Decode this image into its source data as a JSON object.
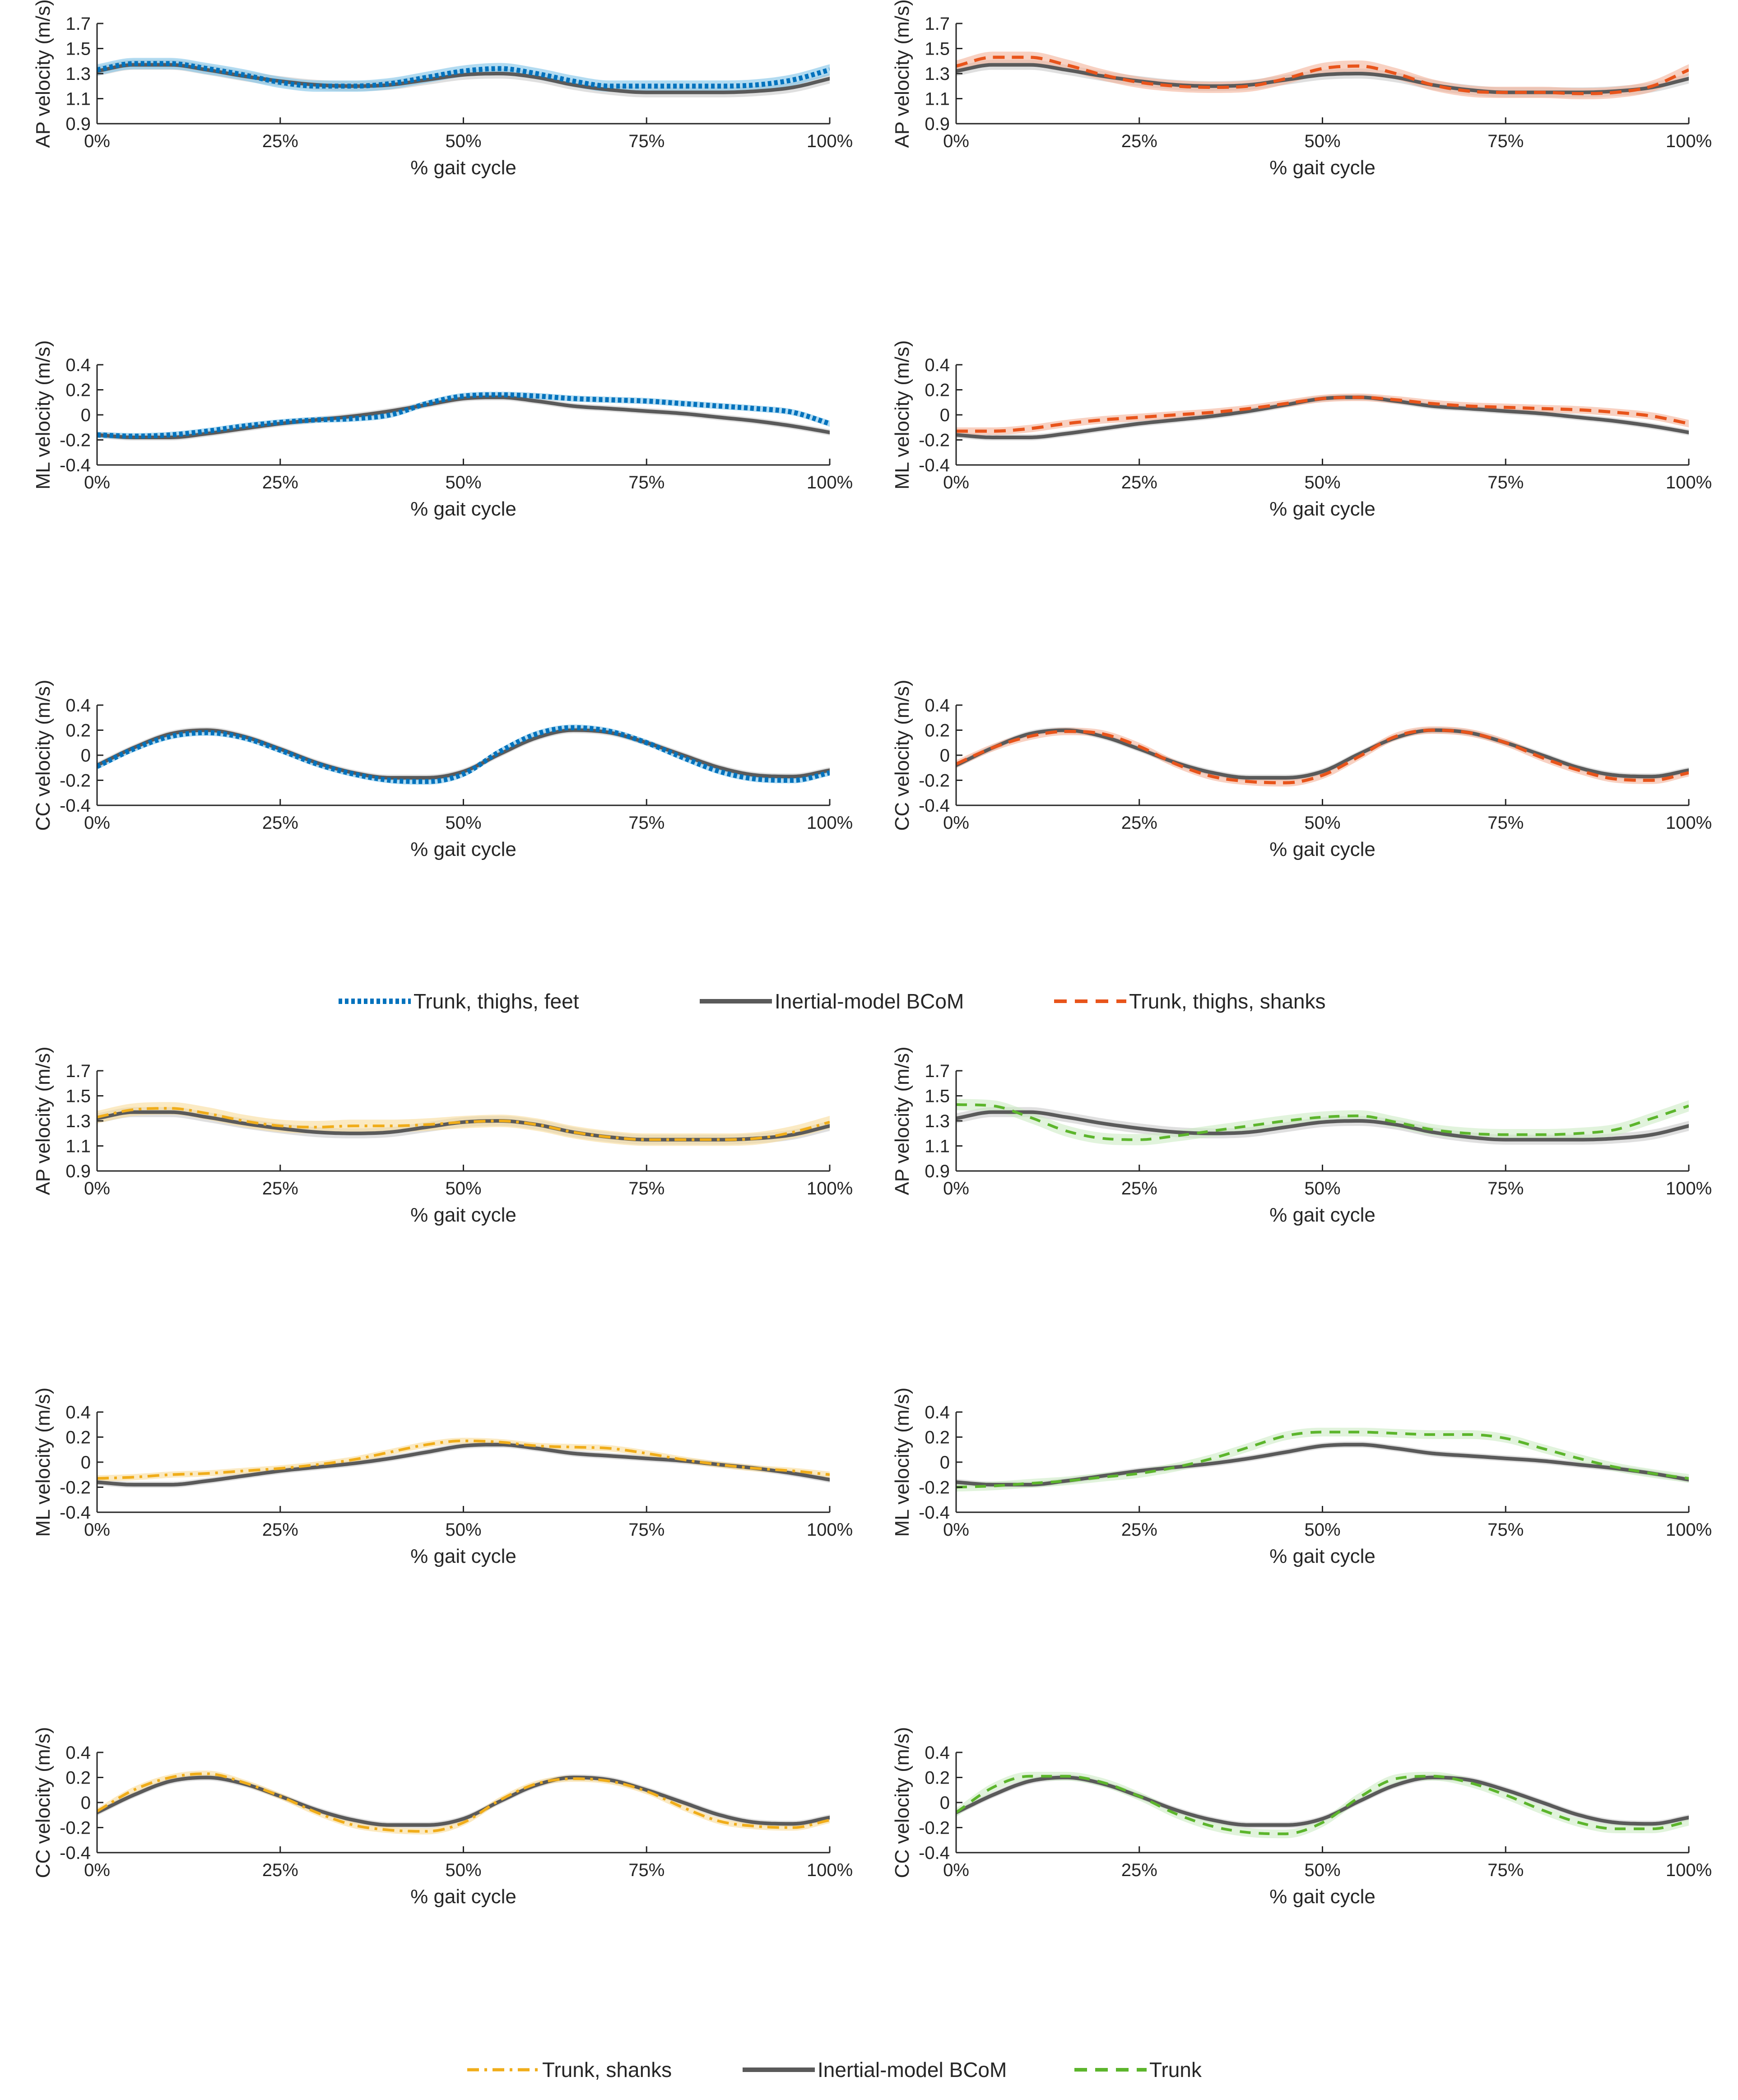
{
  "chart_data": {
    "type": "line",
    "xlabel": "% gait cycle",
    "x_ticks": [
      "0%",
      "25%",
      "50%",
      "75%",
      "100%"
    ],
    "xlim": [
      0,
      100
    ],
    "colors": {
      "reference": "#5a5a5a",
      "reference_band": "#d4d4d4",
      "trunk_thighs_feet": "#0072bd",
      "trunk_thighs_feet_band": "#7ec3e8",
      "trunk_thighs_shanks": "#e8541b",
      "trunk_thighs_shanks_band": "#f3b39a",
      "trunk_shanks": "#f0ad1a",
      "trunk_shanks_band": "#f9dc9b",
      "trunk": "#5cb52c",
      "trunk_band": "#cdebc5"
    },
    "legends": [
      {
        "entries": [
          {
            "key": "trunk_thighs_feet",
            "label": "Trunk, thighs, feet",
            "style": "dotted"
          },
          {
            "key": "reference",
            "label": "Inertial-model BCoM",
            "style": "solid"
          },
          {
            "key": "trunk_thighs_shanks",
            "label": "Trunk, thighs, shanks",
            "style": "dashed"
          }
        ]
      },
      {
        "entries": [
          {
            "key": "trunk_shanks",
            "label": "Trunk, shanks",
            "style": "dashdot"
          },
          {
            "key": "reference",
            "label": "Inertial-model BCoM",
            "style": "solid"
          },
          {
            "key": "trunk",
            "label": "Trunk",
            "style": "dashed"
          }
        ]
      }
    ],
    "x_samples": [
      0,
      5,
      10,
      15,
      20,
      25,
      30,
      35,
      40,
      45,
      50,
      55,
      60,
      65,
      70,
      75,
      80,
      85,
      90,
      95,
      100
    ],
    "reference": {
      "AP": [
        1.32,
        1.37,
        1.37,
        1.33,
        1.28,
        1.24,
        1.21,
        1.2,
        1.21,
        1.25,
        1.29,
        1.3,
        1.27,
        1.21,
        1.17,
        1.15,
        1.15,
        1.15,
        1.16,
        1.19,
        1.26
      ],
      "ML": [
        -0.16,
        -0.18,
        -0.18,
        -0.15,
        -0.11,
        -0.07,
        -0.04,
        -0.01,
        0.03,
        0.08,
        0.13,
        0.14,
        0.11,
        0.07,
        0.05,
        0.03,
        0.01,
        -0.02,
        -0.05,
        -0.09,
        -0.14
      ],
      "CC": [
        -0.08,
        0.06,
        0.17,
        0.2,
        0.15,
        0.05,
        -0.06,
        -0.14,
        -0.18,
        -0.18,
        -0.13,
        0.01,
        0.14,
        0.2,
        0.18,
        0.1,
        0.0,
        -0.1,
        -0.16,
        -0.17,
        -0.12
      ]
    },
    "panels": [
      {
        "series": "trunk_thighs_feet",
        "measure": "AP",
        "ylabel": "AP velocity (m/s)",
        "ylim": [
          0.9,
          1.7
        ],
        "yticks": [
          "0.9",
          "1.1",
          "1.3",
          "1.5",
          "1.7"
        ],
        "band": 0.045,
        "values": [
          1.33,
          1.38,
          1.38,
          1.34,
          1.29,
          1.23,
          1.2,
          1.2,
          1.22,
          1.27,
          1.32,
          1.34,
          1.3,
          1.24,
          1.2,
          1.2,
          1.2,
          1.2,
          1.21,
          1.25,
          1.33
        ]
      },
      {
        "series": "trunk_thighs_shanks",
        "measure": "AP",
        "ylabel": "AP velocity (m/s)",
        "ylim": [
          0.9,
          1.7
        ],
        "yticks": [
          "0.9",
          "1.1",
          "1.3",
          "1.5",
          "1.7"
        ],
        "band": 0.045,
        "values": [
          1.36,
          1.43,
          1.43,
          1.37,
          1.29,
          1.23,
          1.2,
          1.19,
          1.2,
          1.26,
          1.34,
          1.36,
          1.3,
          1.21,
          1.16,
          1.15,
          1.15,
          1.14,
          1.15,
          1.2,
          1.33
        ]
      },
      {
        "series": "trunk_thighs_feet",
        "measure": "ML",
        "ylabel": "ML velocity (m/s)",
        "ylim": [
          -0.4,
          0.4
        ],
        "yticks": [
          "-0.4",
          "-0.2",
          "0",
          "0.2",
          "0.4"
        ],
        "band": 0.025,
        "values": [
          -0.16,
          -0.17,
          -0.16,
          -0.13,
          -0.09,
          -0.06,
          -0.04,
          -0.03,
          0.0,
          0.09,
          0.15,
          0.16,
          0.15,
          0.13,
          0.12,
          0.11,
          0.09,
          0.07,
          0.05,
          0.02,
          -0.07
        ]
      },
      {
        "series": "trunk_thighs_shanks",
        "measure": "ML",
        "ylabel": "ML velocity (m/s)",
        "ylim": [
          -0.4,
          0.4
        ],
        "yticks": [
          "-0.4",
          "-0.2",
          "0",
          "0.2",
          "0.4"
        ],
        "band": 0.03,
        "values": [
          -0.13,
          -0.13,
          -0.11,
          -0.07,
          -0.04,
          -0.02,
          0.0,
          0.02,
          0.05,
          0.09,
          0.13,
          0.14,
          0.12,
          0.09,
          0.07,
          0.06,
          0.05,
          0.04,
          0.02,
          -0.01,
          -0.07
        ]
      },
      {
        "series": "trunk_thighs_feet",
        "measure": "CC",
        "ylabel": "CC velocity (m/s)",
        "ylim": [
          -0.4,
          0.4
        ],
        "yticks": [
          "-0.4",
          "-0.2",
          "0",
          "0.2",
          "0.4"
        ],
        "band": 0.025,
        "values": [
          -0.09,
          0.05,
          0.15,
          0.18,
          0.14,
          0.04,
          -0.07,
          -0.15,
          -0.2,
          -0.21,
          -0.15,
          0.03,
          0.17,
          0.22,
          0.19,
          0.1,
          -0.02,
          -0.13,
          -0.19,
          -0.2,
          -0.14
        ]
      },
      {
        "series": "trunk_thighs_shanks",
        "measure": "CC",
        "ylabel": "CC velocity (m/s)",
        "ylim": [
          -0.4,
          0.4
        ],
        "yticks": [
          "-0.4",
          "-0.2",
          "0",
          "0.2",
          "0.4"
        ],
        "band": 0.03,
        "values": [
          -0.07,
          0.06,
          0.15,
          0.19,
          0.17,
          0.07,
          -0.07,
          -0.17,
          -0.21,
          -0.22,
          -0.16,
          -0.01,
          0.15,
          0.2,
          0.18,
          0.1,
          -0.02,
          -0.12,
          -0.19,
          -0.2,
          -0.14
        ]
      },
      {
        "series": "trunk_shanks",
        "measure": "AP",
        "ylabel": "AP velocity (m/s)",
        "ylim": [
          0.9,
          1.7
        ],
        "yticks": [
          "0.9",
          "1.1",
          "1.3",
          "1.5",
          "1.7"
        ],
        "band": 0.05,
        "values": [
          1.33,
          1.39,
          1.4,
          1.36,
          1.3,
          1.26,
          1.25,
          1.26,
          1.26,
          1.27,
          1.29,
          1.3,
          1.27,
          1.21,
          1.17,
          1.15,
          1.15,
          1.15,
          1.16,
          1.21,
          1.29
        ]
      },
      {
        "series": "trunk",
        "measure": "AP",
        "ylabel": "AP velocity (m/s)",
        "ylim": [
          0.9,
          1.7
        ],
        "yticks": [
          "0.9",
          "1.1",
          "1.3",
          "1.5",
          "1.7"
        ],
        "band": 0.045,
        "values": [
          1.43,
          1.42,
          1.33,
          1.22,
          1.16,
          1.15,
          1.18,
          1.22,
          1.26,
          1.3,
          1.33,
          1.34,
          1.29,
          1.23,
          1.2,
          1.19,
          1.19,
          1.2,
          1.23,
          1.32,
          1.42
        ]
      },
      {
        "series": "trunk_shanks",
        "measure": "ML",
        "ylabel": "ML velocity (m/s)",
        "ylim": [
          -0.4,
          0.4
        ],
        "yticks": [
          "-0.4",
          "-0.2",
          "0",
          "0.2",
          "0.4"
        ],
        "band": 0.025,
        "values": [
          -0.13,
          -0.12,
          -0.1,
          -0.09,
          -0.07,
          -0.05,
          -0.02,
          0.02,
          0.08,
          0.14,
          0.17,
          0.16,
          0.13,
          0.12,
          0.11,
          0.07,
          0.02,
          -0.02,
          -0.05,
          -0.07,
          -0.1
        ]
      },
      {
        "series": "trunk",
        "measure": "ML",
        "ylabel": "ML velocity (m/s)",
        "ylim": [
          -0.4,
          0.4
        ],
        "yticks": [
          "-0.4",
          "-0.2",
          "0",
          "0.2",
          "0.4"
        ],
        "band": 0.035,
        "values": [
          -0.2,
          -0.19,
          -0.17,
          -0.15,
          -0.12,
          -0.09,
          -0.04,
          0.03,
          0.12,
          0.21,
          0.24,
          0.24,
          0.23,
          0.22,
          0.22,
          0.19,
          0.11,
          0.03,
          -0.04,
          -0.09,
          -0.13
        ]
      },
      {
        "series": "trunk_shanks",
        "measure": "CC",
        "ylabel": "CC velocity (m/s)",
        "ylim": [
          -0.4,
          0.4
        ],
        "yticks": [
          "-0.4",
          "-0.2",
          "0",
          "0.2",
          "0.4"
        ],
        "band": 0.025,
        "values": [
          -0.07,
          0.1,
          0.2,
          0.23,
          0.16,
          0.05,
          -0.08,
          -0.18,
          -0.22,
          -0.23,
          -0.16,
          0.02,
          0.15,
          0.19,
          0.17,
          0.09,
          -0.04,
          -0.15,
          -0.19,
          -0.2,
          -0.14
        ]
      },
      {
        "series": "trunk",
        "measure": "CC",
        "ylabel": "CC velocity (m/s)",
        "ylim": [
          -0.4,
          0.4
        ],
        "yticks": [
          "-0.4",
          "-0.2",
          "0",
          "0.2",
          "0.4"
        ],
        "band": 0.035,
        "values": [
          -0.08,
          0.12,
          0.21,
          0.21,
          0.16,
          0.05,
          -0.09,
          -0.19,
          -0.24,
          -0.25,
          -0.16,
          0.04,
          0.19,
          0.21,
          0.16,
          0.06,
          -0.06,
          -0.16,
          -0.21,
          -0.21,
          -0.15
        ]
      }
    ]
  }
}
